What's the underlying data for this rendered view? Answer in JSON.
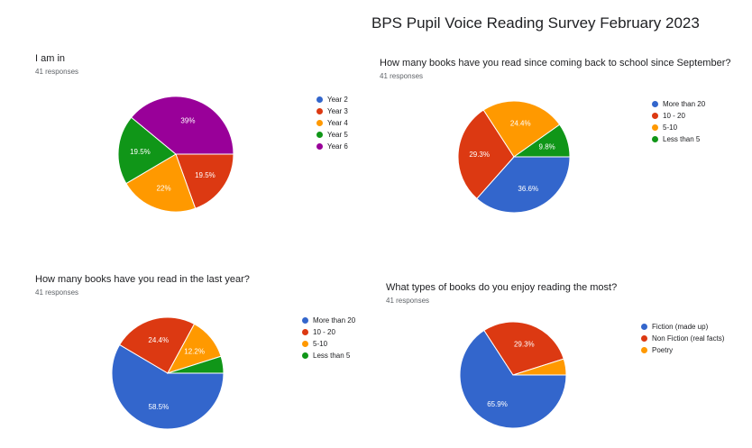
{
  "header": {
    "title": "BPS Pupil Voice Reading Survey February 2023"
  },
  "colors": {
    "blue": "#3366cc",
    "red": "#dc3912",
    "orange": "#ff9900",
    "green": "#109618",
    "purple": "#990099"
  },
  "chart_data": [
    {
      "type": "pie",
      "title": "I am in",
      "subtitle": "41 responses",
      "categories": [
        "Year 2",
        "Year 3",
        "Year 4",
        "Year 5",
        "Year 6"
      ],
      "values": [
        0,
        19.5,
        22,
        19.5,
        39
      ],
      "labels": [
        "",
        "19.5%",
        "22%",
        "19.5%",
        "39%"
      ],
      "colors": [
        "#3366cc",
        "#dc3912",
        "#ff9900",
        "#109618",
        "#990099"
      ],
      "legend": "right"
    },
    {
      "type": "pie",
      "title": "How many books have you read since coming back to school since September?",
      "subtitle": "41 responses",
      "categories": [
        "More than 20",
        "10 - 20",
        "5-10",
        "Less than 5"
      ],
      "values": [
        36.6,
        29.3,
        24.4,
        9.8
      ],
      "labels": [
        "36.6%",
        "29.3%",
        "24.4%",
        "9.8%"
      ],
      "colors": [
        "#3366cc",
        "#dc3912",
        "#ff9900",
        "#109618"
      ],
      "legend": "right"
    },
    {
      "type": "pie",
      "title": "How many books have you read in the last year?",
      "subtitle": "41 responses",
      "categories": [
        "More than 20",
        "10 - 20",
        "5-10",
        "Less than 5"
      ],
      "values": [
        58.5,
        24.4,
        12.2,
        4.9
      ],
      "labels": [
        "58.5%",
        "24.4%",
        "12.2%",
        ""
      ],
      "colors": [
        "#3366cc",
        "#dc3912",
        "#ff9900",
        "#109618"
      ],
      "legend": "right"
    },
    {
      "type": "pie",
      "title": "What types of books do you enjoy reading the most?",
      "subtitle": "41 responses",
      "categories": [
        "Fiction (made up)",
        "Non Fiction (real facts)",
        "Poetry"
      ],
      "values": [
        65.9,
        29.3,
        4.9
      ],
      "labels": [
        "65.9%",
        "29.3%",
        ""
      ],
      "colors": [
        "#3366cc",
        "#dc3912",
        "#ff9900"
      ],
      "legend": "right"
    }
  ]
}
